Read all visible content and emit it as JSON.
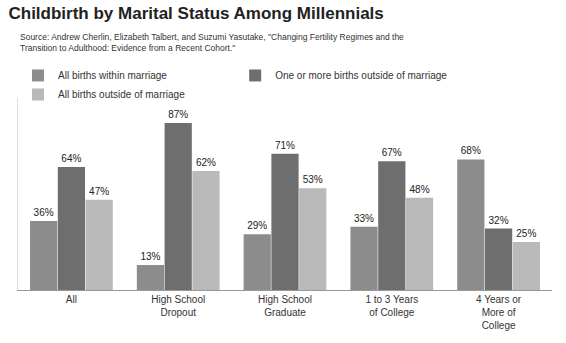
{
  "chart_data": {
    "type": "bar",
    "title": "Childbirth by Marital Status Among Millennials",
    "subtitle": "Source: Andrew Cherlin, Elizabeth Talbert, and Suzumi Yasutake, \"Changing Fertility Regimes and the Transition to Adulthood: Evidence from a Recent Cohort.\"",
    "categories": [
      "All",
      "High School Dropout",
      "High School Graduate",
      "1 to 3 Years of College",
      "4 Years or More of College"
    ],
    "series": [
      {
        "name": "All births within marriage",
        "color": "#8c8c8c",
        "values": [
          36,
          13,
          29,
          33,
          68
        ],
        "value_labels": [
          "36%",
          "13%",
          "29%",
          "33%",
          "68%"
        ]
      },
      {
        "name": "One or more births outside of marriage",
        "color": "#6e6e6e",
        "values": [
          64,
          87,
          71,
          67,
          32
        ],
        "value_labels": [
          "64%",
          "87%",
          "71%",
          "67%",
          "32%"
        ]
      },
      {
        "name": "All births outside of marriage",
        "color": "#b9b9b9",
        "values": [
          47,
          62,
          53,
          48,
          25
        ],
        "value_labels": [
          "47%",
          "62%",
          "53%",
          "48%",
          "25%"
        ]
      }
    ],
    "ylim": [
      0,
      100
    ],
    "yticks": [],
    "grid": false,
    "legend": "top",
    "data_labels": true,
    "tick_labels": "x"
  }
}
